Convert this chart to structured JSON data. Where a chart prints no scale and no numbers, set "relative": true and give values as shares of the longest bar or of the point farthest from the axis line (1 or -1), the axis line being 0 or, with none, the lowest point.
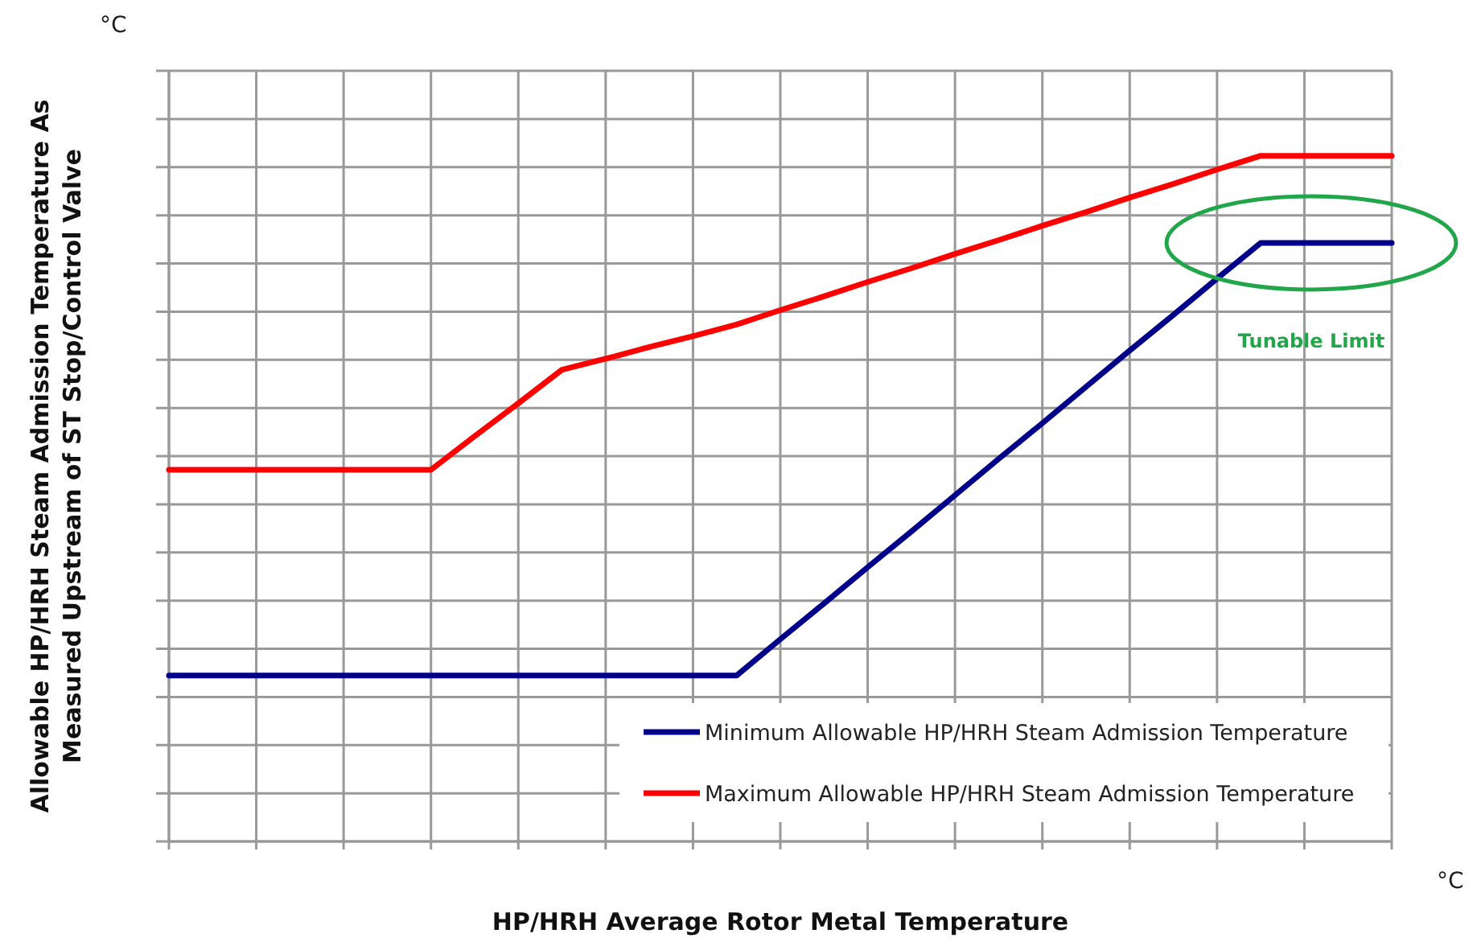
{
  "chart_data": {
    "type": "line",
    "relative": true,
    "xlabel": "HP/HRH Average Rotor Metal Temperature",
    "ylabel": "Allowable HP/HRH Steam Admission Temperature As\nMeasured Upstream of ST Stop/Control Valve",
    "categories": [
      null,
      null,
      null,
      null,
      null,
      null,
      null,
      null,
      null,
      null,
      null,
      null,
      null,
      null,
      null,
      null,
      null,
      null,
      null,
      null,
      null,
      null,
      null,
      null,
      null,
      null,
      null,
      null,
      null
    ],
    "series": [
      {
        "name": "Minimum Allowable HP/HRH Steam Admission Temperature",
        "color": "#00008b",
        "values": [
          0.242,
          0.242,
          0.242,
          0.242,
          0.242,
          0.242,
          0.242,
          0.242,
          0.242,
          0.242,
          0.242,
          0.242,
          0.242,
          0.242,
          0.295,
          0.347,
          0.4,
          0.452,
          0.505,
          0.558,
          0.61,
          0.663,
          0.716,
          0.768,
          0.821,
          0.873,
          0.873,
          0.873,
          0.873
        ]
      },
      {
        "name": "Maximum Allowable HP/HRH Steam Admission Temperature",
        "color": "#ff0000",
        "values": [
          0.542,
          0.542,
          0.542,
          0.542,
          0.542,
          0.542,
          0.542,
          0.591,
          0.639,
          0.688,
          0.704,
          0.721,
          0.737,
          0.754,
          0.775,
          0.795,
          0.816,
          0.836,
          0.857,
          0.877,
          0.898,
          0.918,
          0.939,
          0.959,
          0.98,
          1.0,
          1.0,
          1.0,
          1.0
        ]
      }
    ],
    "annotations": [
      "°C",
      "°C",
      "Tunable Limit"
    ],
    "grid": true,
    "legend": "bottom right",
    "line_style": "solid",
    "marker": "none"
  }
}
